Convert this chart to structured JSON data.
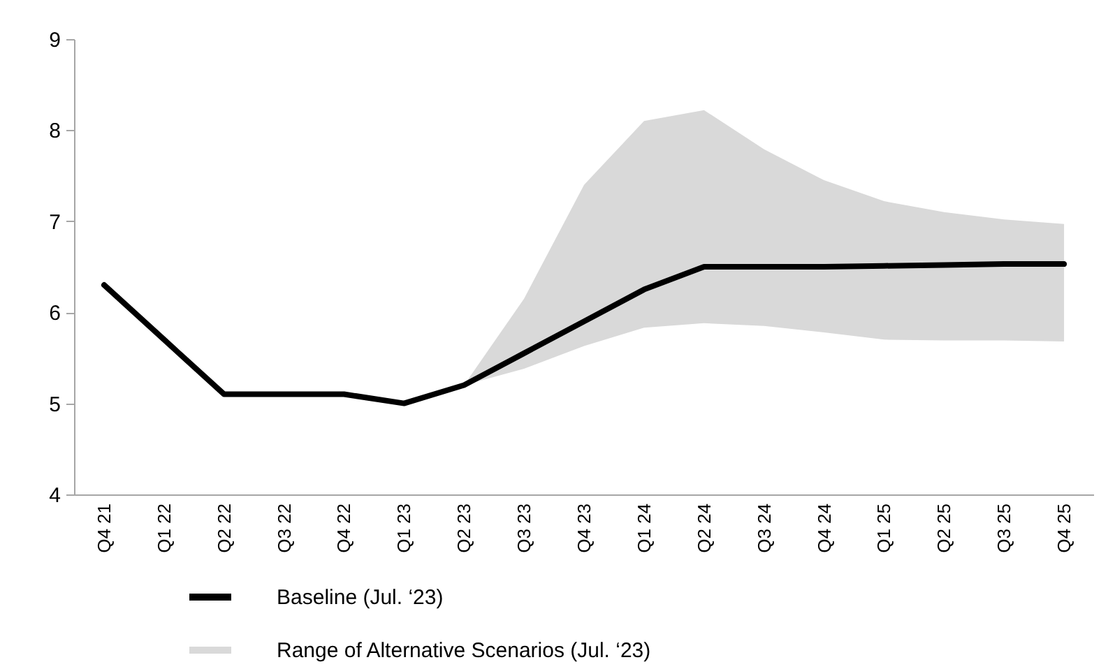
{
  "chart_data": {
    "type": "line",
    "categories": [
      "Q4 21",
      "Q1 22",
      "Q2 22",
      "Q3 22",
      "Q4 22",
      "Q1 23",
      "Q2 23",
      "Q3 23",
      "Q4 23",
      "Q1 24",
      "Q2 24",
      "Q3 24",
      "Q4 24",
      "Q1 25",
      "Q2 25",
      "Q3 25",
      "Q4 25"
    ],
    "series": [
      {
        "name": "Baseline (Jul. ‘23)",
        "color": "#000000",
        "values": [
          6.3,
          5.7,
          5.1,
          5.1,
          5.1,
          5.0,
          5.2,
          5.55,
          5.9,
          6.25,
          6.5,
          6.5,
          6.5,
          6.51,
          6.52,
          6.53,
          6.53
        ]
      },
      {
        "name": "Range of Alternative Scenarios (Jul. ‘23)",
        "type": "area",
        "color": "#d9d9d9",
        "values": [
          null,
          null,
          null,
          null,
          null,
          null,
          null,
          null,
          null,
          null,
          null,
          null,
          null,
          null,
          null,
          null,
          null
        ],
        "lower": [
          null,
          null,
          null,
          null,
          null,
          null,
          5.2,
          5.38,
          5.63,
          5.83,
          5.88,
          5.85,
          5.78,
          5.7,
          5.69,
          5.69,
          5.68
        ],
        "upper": [
          null,
          null,
          null,
          null,
          null,
          null,
          5.2,
          6.15,
          7.4,
          8.1,
          8.22,
          7.79,
          7.45,
          7.22,
          7.1,
          7.02,
          6.97
        ]
      }
    ],
    "ylim": [
      4,
      9
    ],
    "yticks": [
      4,
      5,
      6,
      7,
      8,
      9
    ],
    "grid": false,
    "legend": "bottom left",
    "line_style": "solid",
    "marker": "none"
  }
}
